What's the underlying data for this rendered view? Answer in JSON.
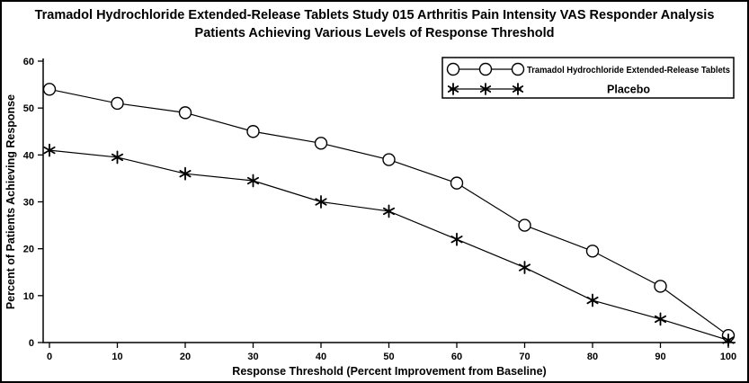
{
  "chart_data": {
    "type": "line",
    "title": "Tramadol Hydrochloride Extended-Release Tablets Study 015 Arthritis Pain Intensity VAS Responder Analysis",
    "subtitle": "Patients Achieving Various Levels of Response Threshold",
    "xlabel": "Response Threshold (Percent Improvement from Baseline)",
    "ylabel": "Percent of Patients Achieving Response",
    "x": [
      0,
      10,
      20,
      30,
      40,
      50,
      60,
      70,
      80,
      90,
      100
    ],
    "series": [
      {
        "name": "Tramadol Hydrochloride Extended-Release Tablets",
        "marker": "circle",
        "values": [
          54,
          51,
          49,
          45,
          42.5,
          39,
          34,
          25,
          19.5,
          12,
          1.5
        ]
      },
      {
        "name": "Placebo",
        "marker": "star",
        "values": [
          41,
          39.5,
          36,
          34.5,
          30,
          28,
          22,
          16,
          9,
          5,
          0.5
        ]
      }
    ],
    "xlim": [
      0,
      100
    ],
    "ylim": [
      0,
      60
    ],
    "xticks": [
      0,
      10,
      20,
      30,
      40,
      50,
      60,
      70,
      80,
      90,
      100
    ],
    "yticks": [
      0,
      10,
      20,
      30,
      40,
      50,
      60
    ],
    "grid": false,
    "legend_position": "top-right",
    "colors": {
      "line": "#000000",
      "background": "#ffffff",
      "text": "#000000"
    }
  }
}
